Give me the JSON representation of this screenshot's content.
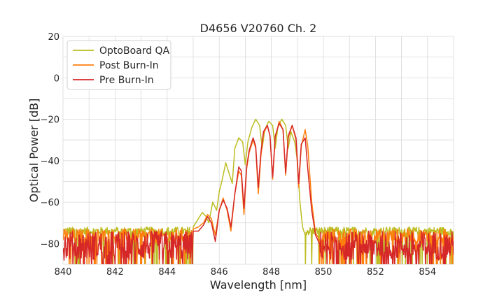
{
  "chart_data": {
    "type": "line",
    "title": "D4656 V20760 Ch. 2",
    "xlabel": "Wavelength [nm]",
    "ylabel": "Optical Power [dB]",
    "xlim": [
      840,
      855
    ],
    "ylim": [
      -90,
      20
    ],
    "x_ticks": [
      "840",
      "842",
      "844",
      "846",
      "848",
      "850",
      "852",
      "854"
    ],
    "y_ticks": [
      "20",
      "0",
      "−20",
      "−40",
      "−60",
      "−80"
    ],
    "grid": true,
    "legend_position": "top-left",
    "series": [
      {
        "name": "OptoBoard QA",
        "color": "#bcbd22",
        "noise_floor": [
          -76,
          -72
        ],
        "points": [
          [
            845.0,
            -72
          ],
          [
            845.2,
            -68
          ],
          [
            845.35,
            -65
          ],
          [
            845.5,
            -67
          ],
          [
            845.6,
            -70
          ],
          [
            845.75,
            -60
          ],
          [
            845.9,
            -64
          ],
          [
            846.0,
            -55
          ],
          [
            846.1,
            -50
          ],
          [
            846.25,
            -41
          ],
          [
            846.4,
            -47
          ],
          [
            846.5,
            -51
          ],
          [
            846.6,
            -34
          ],
          [
            846.75,
            -29
          ],
          [
            846.9,
            -31
          ],
          [
            847.0,
            -42
          ],
          [
            847.1,
            -31
          ],
          [
            847.25,
            -24
          ],
          [
            847.4,
            -20
          ],
          [
            847.55,
            -23
          ],
          [
            847.65,
            -34
          ],
          [
            847.75,
            -25
          ],
          [
            847.9,
            -21
          ],
          [
            848.05,
            -23
          ],
          [
            848.15,
            -34
          ],
          [
            848.25,
            -24
          ],
          [
            848.4,
            -20
          ],
          [
            848.55,
            -23
          ],
          [
            848.65,
            -34
          ],
          [
            848.75,
            -26
          ],
          [
            848.9,
            -31
          ],
          [
            849.0,
            -40
          ],
          [
            849.1,
            -60
          ],
          [
            849.2,
            -72
          ],
          [
            849.3,
            -76
          ]
        ]
      },
      {
        "name": "Post Burn-In",
        "color": "#ff7f0e",
        "noise_floor": [
          -80,
          -73
        ],
        "points": [
          [
            845.0,
            -73
          ],
          [
            845.2,
            -72
          ],
          [
            845.4,
            -70
          ],
          [
            845.55,
            -66
          ],
          [
            845.7,
            -68
          ],
          [
            845.85,
            -76
          ],
          [
            846.0,
            -64
          ],
          [
            846.15,
            -58
          ],
          [
            846.3,
            -64
          ],
          [
            846.45,
            -74
          ],
          [
            846.6,
            -56
          ],
          [
            846.75,
            -45
          ],
          [
            846.85,
            -47
          ],
          [
            846.95,
            -66
          ],
          [
            847.05,
            -44
          ],
          [
            847.15,
            -36
          ],
          [
            847.3,
            -30
          ],
          [
            847.4,
            -34
          ],
          [
            847.5,
            -56
          ],
          [
            847.6,
            -38
          ],
          [
            847.7,
            -27
          ],
          [
            847.85,
            -23
          ],
          [
            847.95,
            -28
          ],
          [
            848.05,
            -49
          ],
          [
            848.15,
            -29
          ],
          [
            848.3,
            -21
          ],
          [
            848.45,
            -25
          ],
          [
            848.55,
            -47
          ],
          [
            848.65,
            -29
          ],
          [
            848.8,
            -23
          ],
          [
            848.95,
            -30
          ],
          [
            849.05,
            -53
          ],
          [
            849.15,
            -33
          ],
          [
            849.3,
            -25
          ],
          [
            849.4,
            -33
          ],
          [
            849.55,
            -60
          ],
          [
            849.7,
            -75
          ],
          [
            849.85,
            -78
          ]
        ]
      },
      {
        "name": "Pre Burn-In",
        "color": "#d62728",
        "noise_floor": [
          -88,
          -74
        ],
        "points": [
          [
            845.0,
            -74
          ],
          [
            845.2,
            -74
          ],
          [
            845.4,
            -71
          ],
          [
            845.55,
            -67
          ],
          [
            845.7,
            -70
          ],
          [
            845.85,
            -79
          ],
          [
            846.0,
            -64
          ],
          [
            846.15,
            -59
          ],
          [
            846.3,
            -63
          ],
          [
            846.45,
            -72
          ],
          [
            846.6,
            -56
          ],
          [
            846.75,
            -43
          ],
          [
            846.85,
            -45
          ],
          [
            846.95,
            -63
          ],
          [
            847.05,
            -43
          ],
          [
            847.15,
            -35
          ],
          [
            847.3,
            -29
          ],
          [
            847.4,
            -33
          ],
          [
            847.5,
            -53
          ],
          [
            847.6,
            -36
          ],
          [
            847.7,
            -26
          ],
          [
            847.85,
            -23
          ],
          [
            847.95,
            -28
          ],
          [
            848.05,
            -48
          ],
          [
            848.15,
            -28
          ],
          [
            848.3,
            -22
          ],
          [
            848.45,
            -25
          ],
          [
            848.55,
            -46
          ],
          [
            848.65,
            -28
          ],
          [
            848.8,
            -23
          ],
          [
            848.95,
            -29
          ],
          [
            849.05,
            -51
          ],
          [
            849.15,
            -32
          ],
          [
            849.3,
            -29
          ],
          [
            849.4,
            -44
          ],
          [
            849.55,
            -64
          ],
          [
            849.7,
            -76
          ],
          [
            849.85,
            -80
          ]
        ]
      }
    ]
  }
}
